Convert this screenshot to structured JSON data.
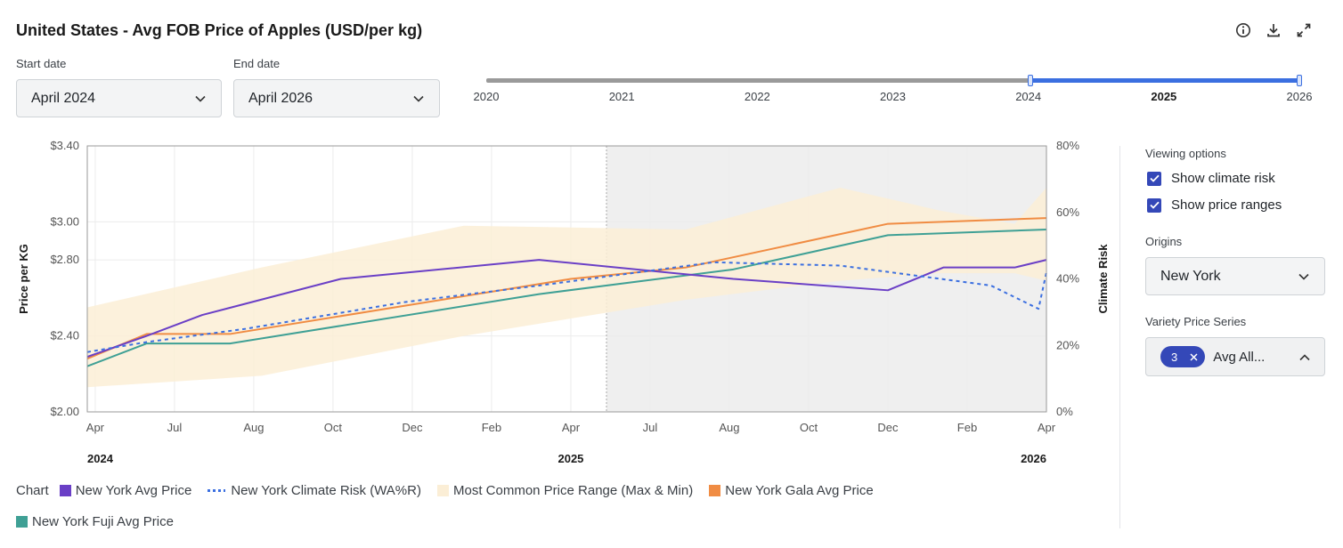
{
  "title": "United States - Avg FOB Price of Apples (USD/per kg)",
  "icons": {
    "info": "info-icon",
    "download": "download-icon",
    "expand": "expand-icon"
  },
  "start_date": {
    "label": "Start date",
    "value": "April 2024"
  },
  "end_date": {
    "label": "End date",
    "value": "April 2026"
  },
  "year_range": {
    "years": [
      "2020",
      "2021",
      "2022",
      "2023",
      "2024",
      "2025",
      "2026"
    ],
    "bold_year": "2025",
    "selected_start": "2024",
    "selected_end": "2026"
  },
  "side_panel": {
    "viewing_options_label": "Viewing options",
    "show_climate_risk": "Show climate risk",
    "show_price_ranges": "Show price ranges",
    "origins_label": "Origins",
    "origin_value": "New York",
    "variety_label": "Variety Price Series",
    "variety_chip_count": "3",
    "variety_value": "Avg All..."
  },
  "legend": {
    "chart_label": "Chart",
    "items": [
      {
        "label": "New York Avg Price",
        "color": "#6a3fc6",
        "style": "square"
      },
      {
        "label": "New York Climate Risk (WA%R)",
        "color": "#3b6fe0",
        "style": "dash"
      },
      {
        "label": "Most Common Price Range (Max & Min)",
        "color": "#fbeed6",
        "style": "square"
      },
      {
        "label": "New York Gala Avg Price",
        "color": "#f08c43",
        "style": "square"
      },
      {
        "label": "New York Fuji Avg Price",
        "color": "#3fa095",
        "style": "square"
      }
    ]
  },
  "colors": {
    "avg": "#6a3fc6",
    "climate": "#3b6fe0",
    "range": "#fbeed6",
    "gala": "#f08c43",
    "fuji": "#3fa095",
    "forecast_shade": "#efefef"
  },
  "chart_data": {
    "type": "line",
    "ylabel": "Price per KG",
    "y2label": "Climate Risk",
    "ylim": [
      2.0,
      3.4
    ],
    "y2lim": [
      0,
      80
    ],
    "yticks": [
      2.0,
      2.4,
      2.8,
      3.0,
      3.4
    ],
    "ytick_labels": [
      "$2.00",
      "$2.40",
      "$2.80",
      "$3.00",
      "$3.40"
    ],
    "y2ticks": [
      0,
      20,
      40,
      60,
      80
    ],
    "y2tick_labels": [
      "0%",
      "20%",
      "40%",
      "60%",
      "80%"
    ],
    "xlim": [
      0,
      24.2
    ],
    "x_ticks": [
      {
        "x": 0.2,
        "label": "Apr"
      },
      {
        "x": 2.2,
        "label": "Jul"
      },
      {
        "x": 4.2,
        "label": "Aug"
      },
      {
        "x": 6.2,
        "label": "Oct"
      },
      {
        "x": 8.2,
        "label": "Dec"
      },
      {
        "x": 10.2,
        "label": "Feb"
      },
      {
        "x": 12.2,
        "label": "Apr"
      },
      {
        "x": 14.2,
        "label": "Jul"
      },
      {
        "x": 16.2,
        "label": "Aug"
      },
      {
        "x": 18.2,
        "label": "Oct"
      },
      {
        "x": 20.2,
        "label": "Dec"
      },
      {
        "x": 22.2,
        "label": "Feb"
      },
      {
        "x": 24.2,
        "label": "Apr"
      }
    ],
    "year_labels": [
      {
        "x": 0,
        "label": "2024",
        "anchor": "start"
      },
      {
        "x": 12.2,
        "label": "2025",
        "anchor": "middle"
      },
      {
        "x": 24.2,
        "label": "2026",
        "anchor": "end"
      }
    ],
    "forecast_start_x": 13.1,
    "series": [
      {
        "name": "New York Avg Price",
        "key": "avg",
        "axis": "left",
        "x": [
          0,
          1.5,
          2.9,
          6.4,
          11.4,
          16.3,
          20.2,
          21.6,
          23.4,
          24.2
        ],
        "values": [
          2.29,
          2.4,
          2.51,
          2.7,
          2.8,
          2.7,
          2.64,
          2.76,
          2.76,
          2.8
        ]
      },
      {
        "name": "New York Gala Avg Price",
        "key": "gala",
        "axis": "left",
        "x": [
          0,
          1.5,
          3.6,
          12.2,
          15.1,
          20.2,
          24.2
        ],
        "values": [
          2.28,
          2.41,
          2.41,
          2.7,
          2.76,
          2.99,
          3.02
        ]
      },
      {
        "name": "New York Fuji Avg Price",
        "key": "fuji",
        "axis": "left",
        "x": [
          0,
          1.5,
          3.6,
          11.4,
          16.3,
          20.2,
          24.2
        ],
        "values": [
          2.24,
          2.36,
          2.36,
          2.62,
          2.75,
          2.93,
          2.96
        ]
      },
      {
        "name": "New York Climate Risk (WA%R)",
        "key": "climate",
        "axis": "right",
        "style": "dashed",
        "x": [
          0,
          1.5,
          4.0,
          8.0,
          11.4,
          15.8,
          19.0,
          22.8,
          24.0,
          24.2
        ],
        "values": [
          18,
          21,
          25,
          33,
          38,
          45,
          44,
          38,
          31,
          42
        ]
      },
      {
        "name": "Most Common Price Range (Max & Min)",
        "key": "range",
        "axis": "left",
        "type": "area",
        "x": [
          0,
          4.4,
          9.5,
          15.1,
          19.0,
          21.5,
          23.4,
          24.2
        ],
        "high": [
          2.55,
          2.76,
          2.98,
          2.96,
          3.18,
          3.06,
          2.99,
          3.18
        ],
        "low": [
          2.13,
          2.19,
          2.4,
          2.59,
          2.69,
          2.73,
          2.73,
          2.69
        ]
      }
    ]
  }
}
